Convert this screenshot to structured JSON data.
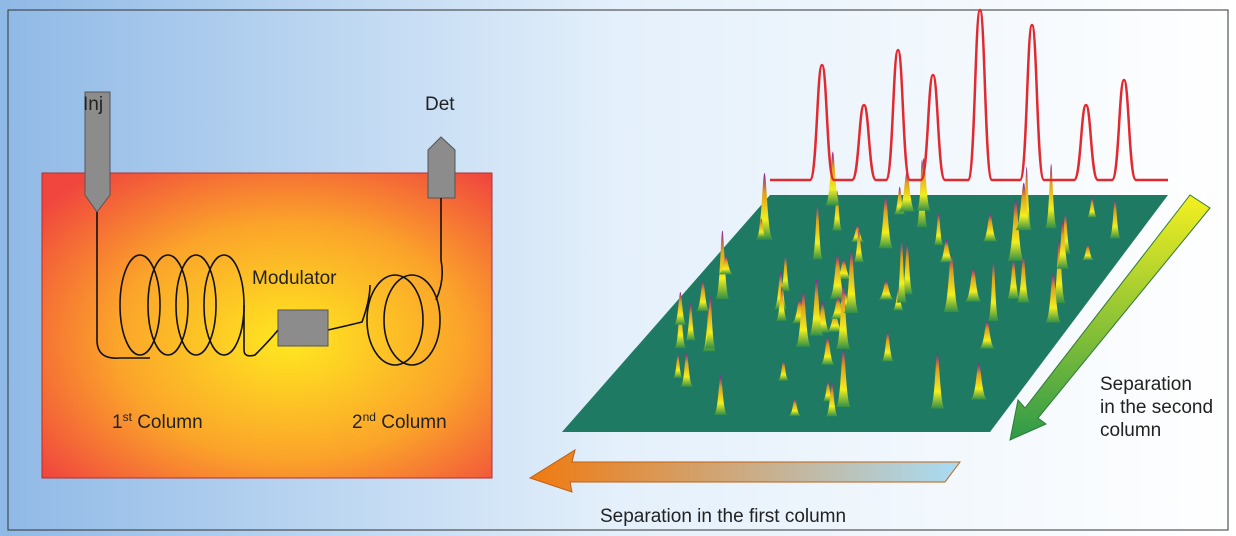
{
  "oven": {
    "injector": "Inj",
    "detector": "Det",
    "modulator": "Modulator",
    "column_1": {
      "number": "1",
      "suffix": "st",
      "text": " Column"
    },
    "column_2": {
      "number": "2",
      "suffix": "nd",
      "text": " Column"
    }
  },
  "plot": {
    "second_dimension": [
      "Separation",
      "in the second",
      "column"
    ],
    "first_dimension": "Separation in the first column"
  }
}
